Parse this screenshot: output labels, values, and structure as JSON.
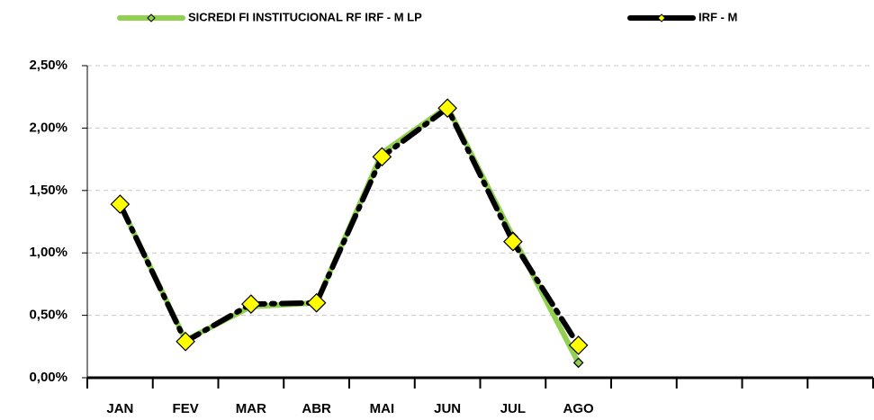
{
  "chart_data": {
    "type": "line",
    "categories": [
      "JAN",
      "FEV",
      "MAR",
      "ABR",
      "MAI",
      "JUN",
      "JUL",
      "AGO",
      null,
      null,
      null,
      null
    ],
    "series": [
      {
        "name": "SICREDI FI INSTITUCIONAL RF IRF - M LP",
        "color": "#92d050",
        "values": [
          1.39,
          0.3,
          0.57,
          0.6,
          1.8,
          2.17,
          1.13,
          0.12,
          null,
          null,
          null,
          null
        ]
      },
      {
        "name": "IRF - M",
        "color": "#000000",
        "values": [
          1.39,
          0.29,
          0.59,
          0.6,
          1.77,
          2.16,
          1.09,
          0.26,
          null,
          null,
          null,
          null
        ]
      }
    ],
    "ylim": [
      0,
      2.5
    ],
    "yticks": [
      {
        "value": 0,
        "label": "0,00%"
      },
      {
        "value": 0.5,
        "label": "0,50%"
      },
      {
        "value": 1,
        "label": "1,00%"
      },
      {
        "value": 1.5,
        "label": "1,50%"
      },
      {
        "value": 2,
        "label": "2,00%"
      },
      {
        "value": 2.5,
        "label": "2,50%"
      }
    ],
    "grid": true,
    "legend": "top"
  }
}
